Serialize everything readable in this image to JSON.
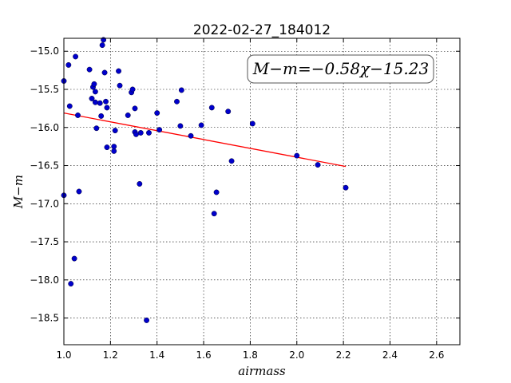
{
  "chart_data": {
    "type": "scatter",
    "title": "2022-02-27_184012",
    "xlabel": "airmass",
    "ylabel": "M−m",
    "xlim": [
      1.0,
      2.7
    ],
    "ylim": [
      -18.85,
      -14.83
    ],
    "y_inverted": true,
    "grid": true,
    "xticks": [
      1.0,
      1.2,
      1.4,
      1.6,
      1.8,
      2.0,
      2.2,
      2.4,
      2.6
    ],
    "xtick_labels": [
      "1.0",
      "1.2",
      "1.4",
      "1.6",
      "1.8",
      "2.0",
      "2.2",
      "2.4",
      "2.6"
    ],
    "yticks": [
      -15.0,
      -15.5,
      -16.0,
      -16.5,
      -17.0,
      -17.5,
      -18.0,
      -18.5
    ],
    "ytick_labels": [
      "−15.0",
      "−15.5",
      "−16.0",
      "−16.5",
      "−17.0",
      "−17.5",
      "−18.0",
      "−18.5"
    ],
    "annotation": "M−m=−0.58χ−15.23",
    "marker_color": "#0000cc",
    "fit_color": "#ff0000",
    "fit_line": {
      "slope": -0.58,
      "intercept": -15.23,
      "x_range": [
        1.0,
        2.21
      ]
    },
    "points": [
      {
        "x": 1.0,
        "y": -15.39
      },
      {
        "x": 1.0,
        "y": -16.89
      },
      {
        "x": 1.02,
        "y": -15.18
      },
      {
        "x": 1.025,
        "y": -15.72
      },
      {
        "x": 1.03,
        "y": -18.05
      },
      {
        "x": 1.045,
        "y": -17.72
      },
      {
        "x": 1.05,
        "y": -15.07
      },
      {
        "x": 1.06,
        "y": -15.84
      },
      {
        "x": 1.065,
        "y": -16.84
      },
      {
        "x": 1.11,
        "y": -15.24
      },
      {
        "x": 1.12,
        "y": -15.62
      },
      {
        "x": 1.125,
        "y": -15.47
      },
      {
        "x": 1.13,
        "y": -15.43
      },
      {
        "x": 1.135,
        "y": -15.67
      },
      {
        "x": 1.135,
        "y": -15.53
      },
      {
        "x": 1.14,
        "y": -16.01
      },
      {
        "x": 1.155,
        "y": -15.68
      },
      {
        "x": 1.16,
        "y": -15.85
      },
      {
        "x": 1.165,
        "y": -14.92
      },
      {
        "x": 1.17,
        "y": -14.85
      },
      {
        "x": 1.175,
        "y": -15.28
      },
      {
        "x": 1.18,
        "y": -15.66
      },
      {
        "x": 1.185,
        "y": -15.74
      },
      {
        "x": 1.185,
        "y": -16.26
      },
      {
        "x": 1.215,
        "y": -16.25
      },
      {
        "x": 1.215,
        "y": -16.31
      },
      {
        "x": 1.22,
        "y": -16.04
      },
      {
        "x": 1.235,
        "y": -15.26
      },
      {
        "x": 1.24,
        "y": -15.45
      },
      {
        "x": 1.275,
        "y": -15.84
      },
      {
        "x": 1.29,
        "y": -15.54
      },
      {
        "x": 1.295,
        "y": -15.5
      },
      {
        "x": 1.305,
        "y": -15.75
      },
      {
        "x": 1.305,
        "y": -16.06
      },
      {
        "x": 1.31,
        "y": -16.09
      },
      {
        "x": 1.325,
        "y": -16.74
      },
      {
        "x": 1.33,
        "y": -16.07
      },
      {
        "x": 1.355,
        "y": -18.53
      },
      {
        "x": 1.365,
        "y": -16.07
      },
      {
        "x": 1.4,
        "y": -15.81
      },
      {
        "x": 1.41,
        "y": -16.03
      },
      {
        "x": 1.485,
        "y": -15.66
      },
      {
        "x": 1.5,
        "y": -15.98
      },
      {
        "x": 1.505,
        "y": -15.51
      },
      {
        "x": 1.545,
        "y": -16.11
      },
      {
        "x": 1.59,
        "y": -15.97
      },
      {
        "x": 1.635,
        "y": -15.74
      },
      {
        "x": 1.645,
        "y": -17.13
      },
      {
        "x": 1.655,
        "y": -16.85
      },
      {
        "x": 1.705,
        "y": -15.79
      },
      {
        "x": 1.72,
        "y": -16.44
      },
      {
        "x": 1.81,
        "y": -15.95
      },
      {
        "x": 2.0,
        "y": -16.37
      },
      {
        "x": 2.09,
        "y": -16.49
      },
      {
        "x": 2.21,
        "y": -16.79
      }
    ]
  }
}
